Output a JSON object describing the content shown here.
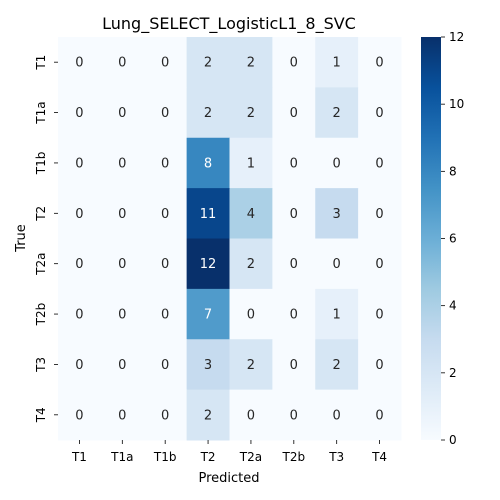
{
  "chart_data": {
    "type": "heatmap",
    "title": "Lung_SELECT_LogisticL1_8_SVC",
    "xlabel": "Predicted",
    "ylabel": "True",
    "x_categories": [
      "T1",
      "T1a",
      "T1b",
      "T2",
      "T2a",
      "T2b",
      "T3",
      "T4"
    ],
    "y_categories": [
      "T1",
      "T1a",
      "T1b",
      "T2",
      "T2a",
      "T2b",
      "T3",
      "T4"
    ],
    "values": [
      [
        0,
        0,
        0,
        2,
        2,
        0,
        1,
        0
      ],
      [
        0,
        0,
        0,
        2,
        2,
        0,
        2,
        0
      ],
      [
        0,
        0,
        0,
        8,
        1,
        0,
        0,
        0
      ],
      [
        0,
        0,
        0,
        11,
        4,
        0,
        3,
        0
      ],
      [
        0,
        0,
        0,
        12,
        2,
        0,
        0,
        0
      ],
      [
        0,
        0,
        0,
        7,
        0,
        0,
        1,
        0
      ],
      [
        0,
        0,
        0,
        3,
        2,
        0,
        2,
        0
      ],
      [
        0,
        0,
        0,
        2,
        0,
        0,
        0,
        0
      ]
    ],
    "colorbar": {
      "min": 0,
      "max": 12,
      "ticks": [
        0,
        2,
        4,
        6,
        8,
        10,
        12
      ],
      "colormap": "Blues",
      "low_color": "#f7fbff",
      "high_color": "#08306b"
    }
  }
}
